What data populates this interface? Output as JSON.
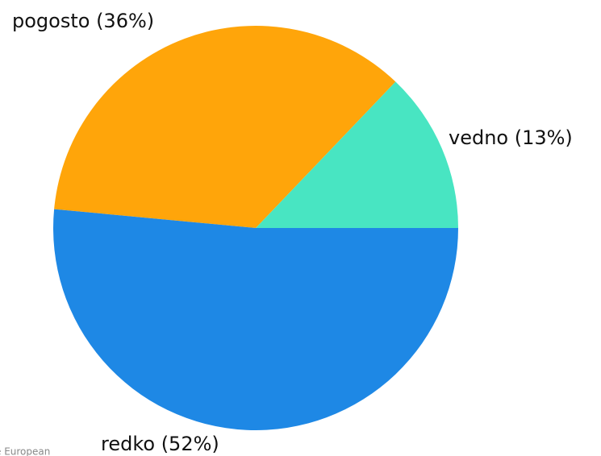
{
  "chart_data": {
    "type": "pie",
    "values": [
      13,
      36,
      52
    ],
    "value_labels": [
      "vedno (13%)",
      "pogosto (36%)",
      "redko (52%)"
    ],
    "colors": [
      "#48e5c2",
      "#ffa50a",
      "#1e88e5"
    ],
    "credit": "e European"
  }
}
